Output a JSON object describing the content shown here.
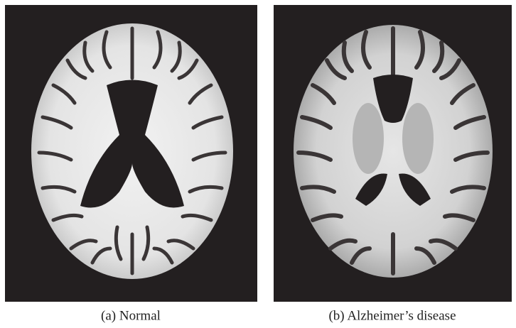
{
  "figure": {
    "panels": [
      {
        "caption": "(a) Normal"
      },
      {
        "caption": "(b) Alzheimer’s disease"
      }
    ]
  }
}
